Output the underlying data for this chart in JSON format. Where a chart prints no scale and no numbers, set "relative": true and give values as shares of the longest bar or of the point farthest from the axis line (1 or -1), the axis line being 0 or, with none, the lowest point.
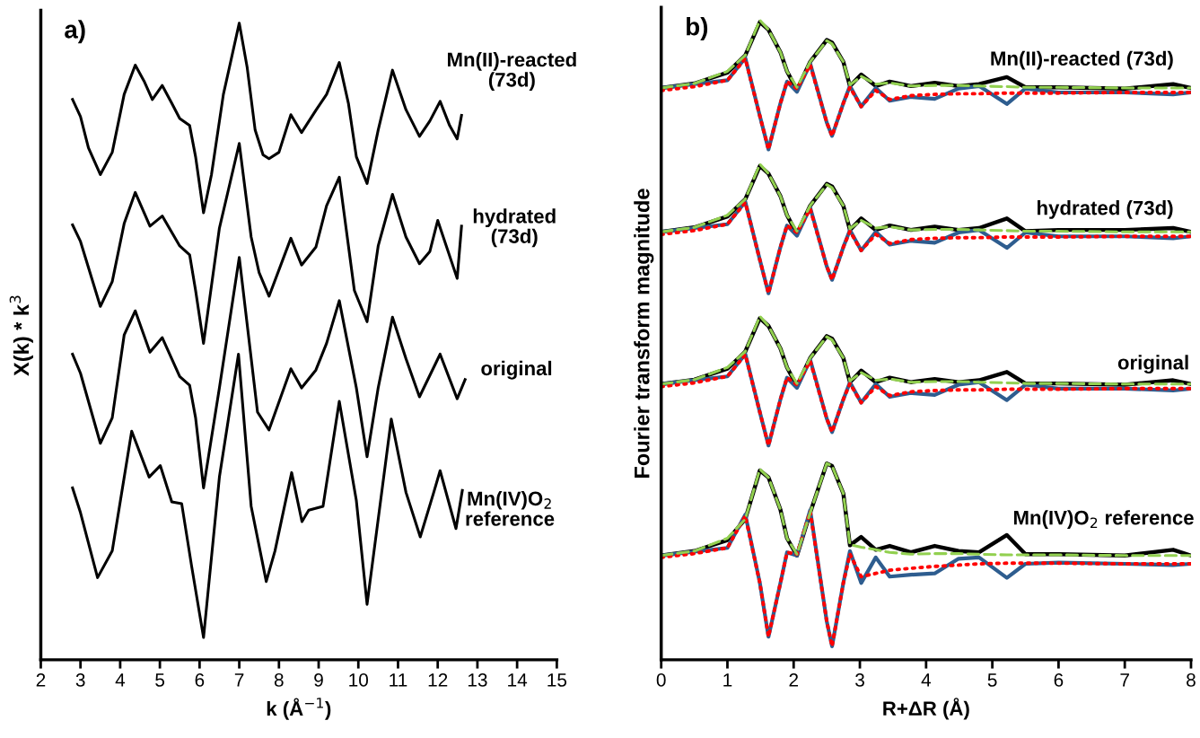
{
  "chart_data": [
    {
      "type": "line",
      "relative": true,
      "xlabel": "k (Å$^{−1}$)",
      "ylabel": "X(k) * k$^{3}$",
      "xlim": [
        2,
        15
      ],
      "xticks": [
        2,
        3,
        4,
        5,
        6,
        7,
        8,
        9,
        10,
        11,
        12,
        13,
        14,
        15
      ],
      "grid": false,
      "annotations": [
        "a)",
        "Mn(II)-reacted\n(73d)",
        "hydrated\n(73d)",
        "original",
        "Mn(IV)O$_{2}$\nreference"
      ],
      "series": [
        {
          "color": "#000000",
          "line_style": "solid",
          "x": [
            2.8,
            3.0,
            3.2,
            3.5,
            3.8,
            4.1,
            4.38,
            4.6,
            4.81,
            5.06,
            5.3,
            5.5,
            5.75,
            5.9,
            6.1,
            6.3,
            6.6,
            7.0,
            7.2,
            7.4,
            7.6,
            7.75,
            8.0,
            8.3,
            8.57,
            8.93,
            9.2,
            9.52,
            9.75,
            9.95,
            10.22,
            10.5,
            10.86,
            11.2,
            11.54,
            11.8,
            12.06,
            12.3,
            12.49,
            12.6
          ],
          "values": [
            0.88,
            0.853,
            0.804,
            0.762,
            0.797,
            0.888,
            0.934,
            0.909,
            0.88,
            0.902,
            0.874,
            0.85,
            0.839,
            0.79,
            0.702,
            0.762,
            0.888,
            1.0,
            0.93,
            0.832,
            0.793,
            0.787,
            0.797,
            0.856,
            0.828,
            0.863,
            0.888,
            0.938,
            0.874,
            0.79,
            0.748,
            0.832,
            0.926,
            0.864,
            0.822,
            0.846,
            0.877,
            0.839,
            0.818,
            0.855
          ]
        },
        {
          "color": "#000000",
          "line_style": "solid",
          "x": [
            2.8,
            3.0,
            3.5,
            3.8,
            4.1,
            4.38,
            4.75,
            5.06,
            5.5,
            5.75,
            5.9,
            6.1,
            6.5,
            7.0,
            7.3,
            7.5,
            7.75,
            8.3,
            8.57,
            8.93,
            9.2,
            9.52,
            9.9,
            10.22,
            10.5,
            10.86,
            11.2,
            11.54,
            11.8,
            12.0,
            12.49,
            12.6
          ],
          "values": [
            0.683,
            0.657,
            0.555,
            0.594,
            0.685,
            0.734,
            0.681,
            0.697,
            0.65,
            0.636,
            0.58,
            0.497,
            0.678,
            0.811,
            0.664,
            0.608,
            0.571,
            0.662,
            0.62,
            0.648,
            0.713,
            0.758,
            0.58,
            0.531,
            0.65,
            0.731,
            0.664,
            0.622,
            0.641,
            0.69,
            0.599,
            0.681
          ]
        },
        {
          "color": "#000000",
          "line_style": "solid",
          "x": [
            2.8,
            3.0,
            3.5,
            3.8,
            4.1,
            4.38,
            4.75,
            5.06,
            5.5,
            5.75,
            5.9,
            6.1,
            6.5,
            7.0,
            7.46,
            7.75,
            8.3,
            8.57,
            8.93,
            9.2,
            9.52,
            9.95,
            10.22,
            10.5,
            10.86,
            11.2,
            11.54,
            12.06,
            12.49,
            12.69
          ],
          "values": [
            0.48,
            0.45,
            0.34,
            0.38,
            0.51,
            0.548,
            0.483,
            0.506,
            0.445,
            0.431,
            0.38,
            0.27,
            0.427,
            0.632,
            0.389,
            0.361,
            0.457,
            0.427,
            0.455,
            0.497,
            0.564,
            0.427,
            0.319,
            0.427,
            0.538,
            0.473,
            0.413,
            0.48,
            0.41,
            0.44
          ]
        },
        {
          "color": "#000000",
          "line_style": "solid",
          "x": [
            2.8,
            3.0,
            3.43,
            3.8,
            4.29,
            4.73,
            5.01,
            5.3,
            5.55,
            5.8,
            6.1,
            6.5,
            6.98,
            7.3,
            7.68,
            7.9,
            8.32,
            8.58,
            8.75,
            9.11,
            9.52,
            9.95,
            10.22,
            10.83,
            11.2,
            11.56,
            11.9,
            12.06,
            12.46,
            12.62
          ],
          "values": [
            0.27,
            0.231,
            0.129,
            0.171,
            0.359,
            0.287,
            0.305,
            0.248,
            0.245,
            0.147,
            0.035,
            0.287,
            0.48,
            0.241,
            0.123,
            0.171,
            0.294,
            0.217,
            0.235,
            0.241,
            0.406,
            0.25,
            0.087,
            0.378,
            0.263,
            0.193,
            0.263,
            0.297,
            0.206,
            0.266
          ]
        }
      ]
    },
    {
      "type": "line",
      "relative": true,
      "xlabel": "R+ΔR (Å)",
      "ylabel": "Fourier transform magnitude",
      "xlim": [
        0,
        8
      ],
      "xticks": [
        0,
        1,
        2,
        3,
        4,
        5,
        6,
        7,
        8
      ],
      "grid": false,
      "annotations": [
        "b)",
        "Mn(II)-reacted (73d)",
        "hydrated (73d)",
        "original",
        "Mn(IV)O$_{2}$ reference"
      ],
      "x": [
        0,
        0.5,
        1.0,
        1.27,
        1.49,
        1.62,
        1.8,
        1.9,
        2.05,
        2.25,
        2.5,
        2.58,
        2.75,
        2.85,
        3.02,
        3.24,
        3.45,
        3.77,
        4.13,
        4.49,
        4.8,
        5.22,
        5.5,
        6.0,
        7.0,
        7.73,
        8.0
      ],
      "series": [
        {
          "color": "#000000",
          "line_style": "solid",
          "values": [
            0.894,
            0.901,
            0.918,
            0.945,
            0.997,
            0.985,
            0.95,
            0.92,
            0.891,
            0.935,
            0.969,
            0.965,
            0.935,
            0.897,
            0.915,
            0.897,
            0.904,
            0.897,
            0.902,
            0.897,
            0.9,
            0.911,
            0.895,
            0.895,
            0.893,
            0.9,
            0.894
          ]
        },
        {
          "color": "#2e5d8f",
          "line_style": "solid",
          "values": [
            0.894,
            0.9,
            0.906,
            0.941,
            0.85,
            0.798,
            0.87,
            0.904,
            0.888,
            0.932,
            0.84,
            0.819,
            0.87,
            0.897,
            0.865,
            0.894,
            0.874,
            0.88,
            0.877,
            0.893,
            0.897,
            0.869,
            0.893,
            0.887,
            0.887,
            0.884,
            0.887
          ]
        },
        {
          "color": "#ff0000",
          "line_style": "dotted",
          "values": [
            0.89,
            0.896,
            0.906,
            0.94,
            0.85,
            0.798,
            0.87,
            0.904,
            0.893,
            0.93,
            0.84,
            0.819,
            0.87,
            0.895,
            0.865,
            0.89,
            0.876,
            0.882,
            0.884,
            0.885,
            0.885,
            0.886,
            0.886,
            0.886,
            0.887,
            0.887,
            0.887
          ]
        },
        {
          "color": "#92d050",
          "line_style": "dashed",
          "values": [
            0.894,
            0.901,
            0.92,
            0.945,
            1.0,
            0.985,
            0.95,
            0.92,
            0.895,
            0.935,
            0.968,
            0.963,
            0.935,
            0.899,
            0.912,
            0.9,
            0.902,
            0.897,
            0.898,
            0.898,
            0.897,
            0.896,
            0.895,
            0.895,
            0.894,
            0.894,
            0.894
          ]
        },
        {
          "color": "#000000",
          "line_style": "solid",
          "values": [
            0.669,
            0.676,
            0.693,
            0.72,
            0.772,
            0.76,
            0.725,
            0.695,
            0.666,
            0.71,
            0.744,
            0.74,
            0.71,
            0.672,
            0.69,
            0.672,
            0.679,
            0.672,
            0.677,
            0.672,
            0.675,
            0.69,
            0.67,
            0.672,
            0.672,
            0.675,
            0.669
          ]
        },
        {
          "color": "#2e5d8f",
          "line_style": "solid",
          "values": [
            0.669,
            0.675,
            0.681,
            0.716,
            0.625,
            0.573,
            0.645,
            0.679,
            0.663,
            0.707,
            0.615,
            0.594,
            0.645,
            0.672,
            0.64,
            0.669,
            0.649,
            0.655,
            0.652,
            0.668,
            0.672,
            0.644,
            0.668,
            0.662,
            0.662,
            0.659,
            0.662
          ]
        },
        {
          "color": "#ff0000",
          "line_style": "dotted",
          "values": [
            0.665,
            0.671,
            0.681,
            0.715,
            0.625,
            0.573,
            0.645,
            0.679,
            0.668,
            0.705,
            0.615,
            0.594,
            0.645,
            0.67,
            0.64,
            0.665,
            0.651,
            0.657,
            0.659,
            0.66,
            0.66,
            0.661,
            0.661,
            0.661,
            0.662,
            0.662,
            0.662
          ]
        },
        {
          "color": "#92d050",
          "line_style": "dashed",
          "values": [
            0.669,
            0.676,
            0.695,
            0.72,
            0.775,
            0.76,
            0.725,
            0.695,
            0.67,
            0.71,
            0.743,
            0.738,
            0.71,
            0.674,
            0.687,
            0.675,
            0.677,
            0.672,
            0.673,
            0.673,
            0.672,
            0.671,
            0.67,
            0.67,
            0.669,
            0.669,
            0.669
          ]
        },
        {
          "color": "#000000",
          "line_style": "solid",
          "values": [
            0.431,
            0.438,
            0.455,
            0.482,
            0.534,
            0.522,
            0.487,
            0.457,
            0.428,
            0.472,
            0.506,
            0.502,
            0.472,
            0.434,
            0.452,
            0.434,
            0.441,
            0.434,
            0.439,
            0.434,
            0.437,
            0.45,
            0.432,
            0.432,
            0.43,
            0.437,
            0.431
          ]
        },
        {
          "color": "#2e5d8f",
          "line_style": "solid",
          "values": [
            0.431,
            0.437,
            0.443,
            0.478,
            0.387,
            0.335,
            0.407,
            0.441,
            0.425,
            0.469,
            0.377,
            0.356,
            0.407,
            0.434,
            0.402,
            0.431,
            0.411,
            0.417,
            0.414,
            0.43,
            0.434,
            0.406,
            0.43,
            0.424,
            0.424,
            0.421,
            0.424
          ]
        },
        {
          "color": "#ff0000",
          "line_style": "dotted",
          "values": [
            0.427,
            0.433,
            0.443,
            0.477,
            0.387,
            0.335,
            0.407,
            0.441,
            0.43,
            0.467,
            0.377,
            0.356,
            0.407,
            0.432,
            0.402,
            0.427,
            0.413,
            0.419,
            0.421,
            0.422,
            0.422,
            0.423,
            0.423,
            0.423,
            0.424,
            0.424,
            0.424
          ]
        },
        {
          "color": "#92d050",
          "line_style": "dashed",
          "values": [
            0.431,
            0.438,
            0.457,
            0.482,
            0.537,
            0.522,
            0.487,
            0.457,
            0.432,
            0.472,
            0.505,
            0.5,
            0.472,
            0.436,
            0.449,
            0.437,
            0.439,
            0.434,
            0.435,
            0.435,
            0.434,
            0.433,
            0.432,
            0.432,
            0.431,
            0.431,
            0.431
          ]
        },
        {
          "color": "#000000",
          "line_style": "solid",
          "values": [
            0.163,
            0.17,
            0.187,
            0.22,
            0.296,
            0.285,
            0.235,
            0.19,
            0.163,
            0.23,
            0.307,
            0.303,
            0.26,
            0.179,
            0.192,
            0.172,
            0.178,
            0.168,
            0.178,
            0.17,
            0.168,
            0.195,
            0.165,
            0.165,
            0.163,
            0.172,
            0.163
          ]
        },
        {
          "color": "#2e5d8f",
          "line_style": "solid",
          "values": [
            0.163,
            0.169,
            0.175,
            0.227,
            0.12,
            0.036,
            0.12,
            0.168,
            0.163,
            0.234,
            0.06,
            0.021,
            0.12,
            0.17,
            0.12,
            0.16,
            0.13,
            0.133,
            0.135,
            0.158,
            0.16,
            0.128,
            0.15,
            0.152,
            0.15,
            0.148,
            0.15
          ]
        },
        {
          "color": "#ff0000",
          "line_style": "dotted",
          "values": [
            0.16,
            0.166,
            0.175,
            0.225,
            0.12,
            0.036,
            0.12,
            0.168,
            0.165,
            0.232,
            0.06,
            0.021,
            0.12,
            0.165,
            0.13,
            0.135,
            0.14,
            0.143,
            0.146,
            0.148,
            0.15,
            0.151,
            0.151,
            0.151,
            0.15,
            0.15,
            0.15
          ]
        },
        {
          "color": "#92d050",
          "line_style": "dashed",
          "values": [
            0.163,
            0.17,
            0.19,
            0.22,
            0.298,
            0.285,
            0.235,
            0.19,
            0.165,
            0.23,
            0.307,
            0.303,
            0.26,
            0.18,
            0.176,
            0.172,
            0.168,
            0.165,
            0.166,
            0.166,
            0.165,
            0.164,
            0.164,
            0.164,
            0.163,
            0.163,
            0.163
          ]
        }
      ]
    }
  ]
}
